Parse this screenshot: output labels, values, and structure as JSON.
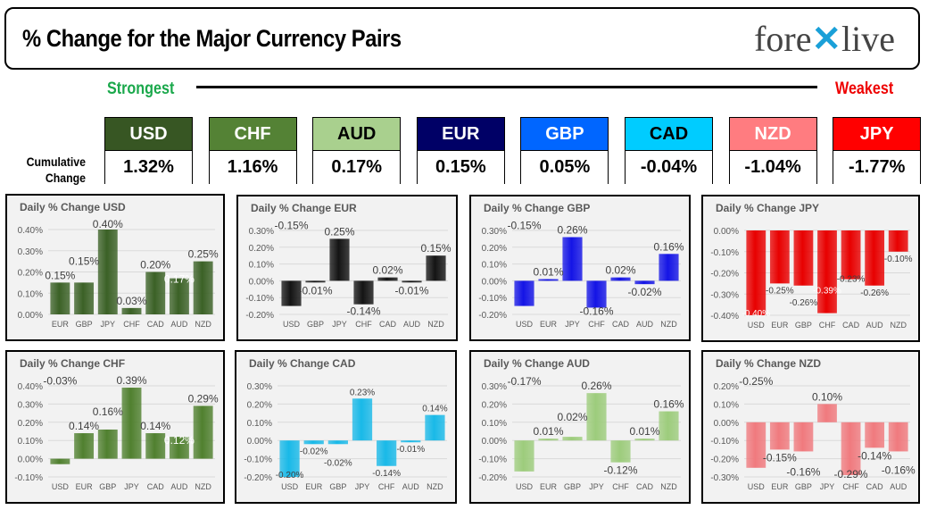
{
  "header": {
    "title": "% Change for the Major Currency Pairs",
    "logo": "forexlive"
  },
  "scale": {
    "strongest": "Strongest",
    "weakest": "Weakest"
  },
  "cumulative": {
    "label_line1": "Cumulative",
    "label_line2": "Change",
    "items": [
      {
        "currency": "USD",
        "value": "1.32%",
        "bg": "#375623",
        "fg": "#ffffff"
      },
      {
        "currency": "CHF",
        "value": "1.16%",
        "bg": "#548235",
        "fg": "#ffffff"
      },
      {
        "currency": "AUD",
        "value": "0.17%",
        "bg": "#a9d08e",
        "fg": "#000000"
      },
      {
        "currency": "EUR",
        "value": "0.15%",
        "bg": "#000066",
        "fg": "#ffffff"
      },
      {
        "currency": "GBP",
        "value": "0.05%",
        "bg": "#0066ff",
        "fg": "#ffffff"
      },
      {
        "currency": "CAD",
        "value": "-0.04%",
        "bg": "#00ccff",
        "fg": "#000000"
      },
      {
        "currency": "NZD",
        "value": "-1.04%",
        "bg": "#ff7c80",
        "fg": "#ffffff"
      },
      {
        "currency": "JPY",
        "value": "-1.77%",
        "bg": "#ff0000",
        "fg": "#ffffff"
      }
    ]
  },
  "chart_data": [
    {
      "type": "bar",
      "title": "Daily % Change USD",
      "color": "#3b6126",
      "ylim": [
        0,
        0.4
      ],
      "categories": [
        "EUR",
        "GBP",
        "JPY",
        "CHF",
        "CAD",
        "AUD",
        "NZD"
      ],
      "values": [
        0.15,
        0.15,
        0.4,
        0.03,
        0.2,
        0.17,
        0.25
      ],
      "labels": [
        "0.15%",
        "0.15%",
        "0.40%",
        "0.03%",
        "0.20%",
        "0.17%",
        "0.25%"
      ],
      "ticks": [
        "0.00%",
        "0.10%",
        "0.20%",
        "0.30%",
        "0.40%"
      ]
    },
    {
      "type": "bar",
      "title": "Daily % Change EUR",
      "color": "#141414",
      "ylim": [
        -0.2,
        0.3
      ],
      "categories": [
        "USD",
        "GBP",
        "JPY",
        "CHF",
        "CAD",
        "AUD",
        "NZD"
      ],
      "values": [
        -0.15,
        -0.01,
        0.25,
        -0.14,
        0.02,
        -0.01,
        0.15
      ],
      "labels": [
        "-0.15%",
        "-0.01%",
        "0.25%",
        "-0.14%",
        "0.02%",
        "-0.01%",
        "0.15%"
      ],
      "ticks": [
        "-0.20%",
        "-0.10%",
        "0.00%",
        "0.10%",
        "0.20%",
        "0.30%"
      ]
    },
    {
      "type": "bar",
      "title": "Daily % Change GBP",
      "color": "#1414e6",
      "ylim": [
        -0.2,
        0.3
      ],
      "categories": [
        "USD",
        "EUR",
        "JPY",
        "CHF",
        "CAD",
        "AUD",
        "NZD"
      ],
      "values": [
        -0.15,
        0.01,
        0.26,
        -0.16,
        0.02,
        -0.02,
        0.16
      ],
      "labels": [
        "-0.15%",
        "0.01%",
        "0.26%",
        "-0.16%",
        "0.02%",
        "-0.02%",
        "0.16%"
      ],
      "ticks": [
        "-0.20%",
        "-0.10%",
        "0.00%",
        "0.10%",
        "0.20%",
        "0.30%"
      ]
    },
    {
      "type": "bar",
      "title": "Daily % Change JPY",
      "color": "#e80000",
      "ylim": [
        -0.4,
        0
      ],
      "categories": [
        "USD",
        "EUR",
        "GBP",
        "CHF",
        "CAD",
        "AUD",
        "NZD"
      ],
      "values": [
        -0.4,
        -0.25,
        -0.26,
        -0.39,
        -0.23,
        -0.26,
        -0.1
      ],
      "labels": [
        "-0.40%",
        "-0.25%",
        "-0.26%",
        "-0.39%",
        "-0.23%",
        "-0.26%",
        "-0.10%"
      ],
      "ticks": [
        "-0.40%",
        "-0.30%",
        "-0.20%",
        "-0.10%",
        "0.00%"
      ]
    },
    {
      "type": "bar",
      "title": "Daily % Change CHF",
      "color": "#50802f",
      "ylim": [
        -0.1,
        0.4
      ],
      "categories": [
        "USD",
        "EUR",
        "GBP",
        "JPY",
        "CAD",
        "AUD",
        "NZD"
      ],
      "values": [
        -0.03,
        0.14,
        0.16,
        0.39,
        0.14,
        0.12,
        0.29
      ],
      "labels": [
        "-0.03%",
        "0.14%",
        "0.16%",
        "0.39%",
        "0.14%",
        "0.12%",
        "0.29%"
      ],
      "ticks": [
        "-0.10%",
        "0.00%",
        "0.10%",
        "0.20%",
        "0.30%",
        "0.40%"
      ]
    },
    {
      "type": "bar",
      "title": "Daily % Change CAD",
      "color": "#19b9e8",
      "ylim": [
        -0.2,
        0.3
      ],
      "categories": [
        "USD",
        "EUR",
        "GBP",
        "JPY",
        "CHF",
        "AUD",
        "NZD"
      ],
      "values": [
        -0.2,
        -0.02,
        -0.02,
        0.23,
        -0.14,
        -0.01,
        0.14
      ],
      "labels": [
        "-0.20%",
        "-0.02%",
        "-0.02%",
        "0.23%",
        "-0.14%",
        "-0.01%",
        "0.14%"
      ],
      "ticks": [
        "-0.20%",
        "-0.10%",
        "0.00%",
        "0.10%",
        "0.20%",
        "0.30%"
      ]
    },
    {
      "type": "bar",
      "title": "Daily % Change AUD",
      "color": "#9dcc7c",
      "ylim": [
        -0.2,
        0.3
      ],
      "categories": [
        "USD",
        "EUR",
        "GBP",
        "JPY",
        "CHF",
        "CAD",
        "NZD"
      ],
      "values": [
        -0.17,
        0.01,
        0.02,
        0.26,
        -0.12,
        0.01,
        0.16
      ],
      "labels": [
        "-0.17%",
        "0.01%",
        "0.02%",
        "0.26%",
        "-0.12%",
        "0.01%",
        "0.16%"
      ],
      "ticks": [
        "-0.20%",
        "-0.10%",
        "0.00%",
        "0.10%",
        "0.20%",
        "0.30%"
      ]
    },
    {
      "type": "bar",
      "title": "Daily % Change NZD",
      "color": "#f07a7e",
      "ylim": [
        -0.3,
        0.2
      ],
      "categories": [
        "USD",
        "EUR",
        "GBP",
        "JPY",
        "CHF",
        "CAD",
        "AUD"
      ],
      "values": [
        -0.25,
        -0.15,
        -0.16,
        0.1,
        -0.29,
        -0.14,
        -0.16
      ],
      "labels": [
        "-0.25%",
        "-0.15%",
        "-0.16%",
        "0.10%",
        "-0.29%",
        "-0.14%",
        "-0.16%"
      ],
      "ticks": [
        "-0.30%",
        "-0.20%",
        "-0.10%",
        "0.00%",
        "0.10%",
        "0.20%"
      ]
    }
  ]
}
